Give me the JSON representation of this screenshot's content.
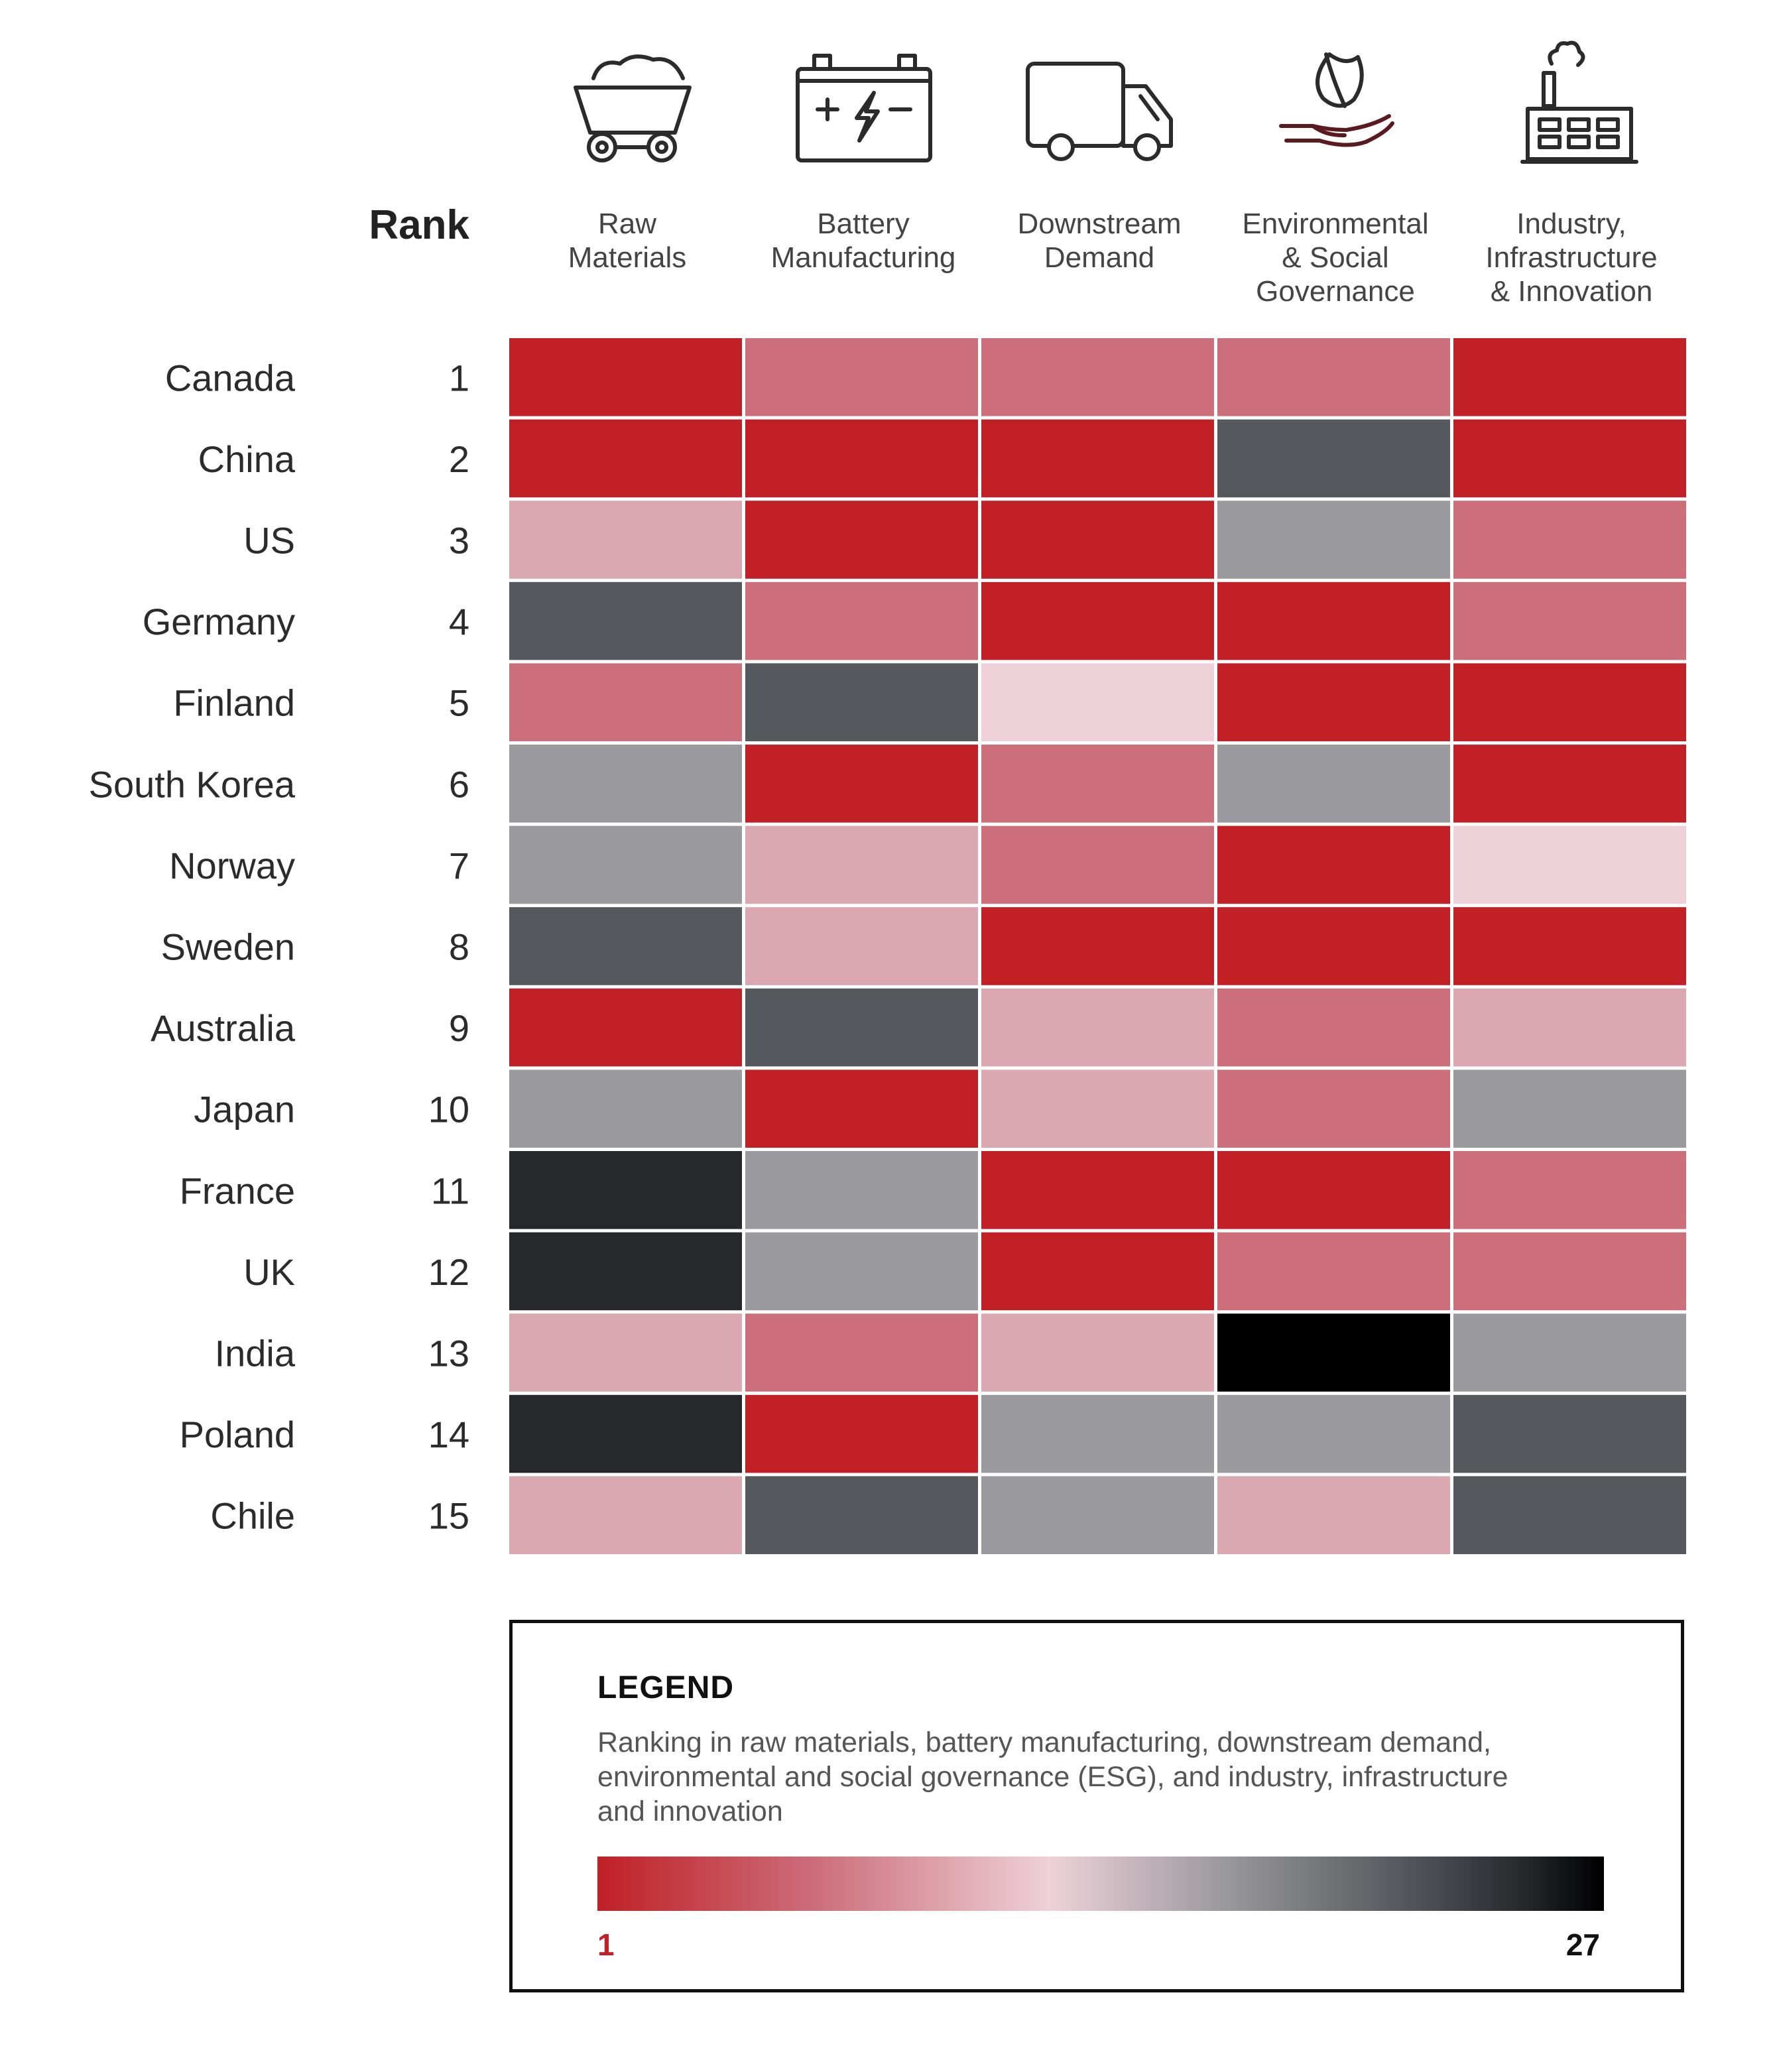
{
  "chart_data": {
    "type": "heatmap",
    "rank_header": "Rank",
    "columns": [
      {
        "label_lines": [
          "Raw",
          "Materials"
        ],
        "icon": "mining-cart-icon"
      },
      {
        "label_lines": [
          "Battery",
          "Manufacturing"
        ],
        "icon": "battery-icon"
      },
      {
        "label_lines": [
          "Downstream",
          "Demand"
        ],
        "icon": "truck-icon"
      },
      {
        "label_lines": [
          "Environmental",
          "& Social",
          "Governance"
        ],
        "icon": "leaf-in-hand-icon"
      },
      {
        "label_lines": [
          "Industry,",
          "Infrastructure",
          "& Innovation"
        ],
        "icon": "factory-icon"
      }
    ],
    "rows": [
      {
        "country": "Canada",
        "rank": "1",
        "levels": [
          0,
          2,
          2,
          2,
          0
        ]
      },
      {
        "country": "China",
        "rank": "2",
        "levels": [
          0,
          0,
          0,
          6,
          0
        ]
      },
      {
        "country": "US",
        "rank": "3",
        "levels": [
          3,
          0,
          0,
          5,
          2
        ]
      },
      {
        "country": "Germany",
        "rank": "4",
        "levels": [
          6,
          2,
          0,
          0,
          2
        ]
      },
      {
        "country": "Finland",
        "rank": "5",
        "levels": [
          2,
          6,
          4,
          0,
          0
        ]
      },
      {
        "country": "South Korea",
        "rank": "6",
        "levels": [
          5,
          0,
          2,
          5,
          0
        ]
      },
      {
        "country": "Norway",
        "rank": "7",
        "levels": [
          5,
          3,
          2,
          0,
          4
        ]
      },
      {
        "country": "Sweden",
        "rank": "8",
        "levels": [
          6,
          3,
          0,
          0,
          0
        ]
      },
      {
        "country": "Australia",
        "rank": "9",
        "levels": [
          0,
          6,
          3,
          2,
          3
        ]
      },
      {
        "country": "Japan",
        "rank": "10",
        "levels": [
          5,
          0,
          3,
          2,
          5
        ]
      },
      {
        "country": "France",
        "rank": "11",
        "levels": [
          7,
          5,
          0,
          0,
          2
        ]
      },
      {
        "country": "UK",
        "rank": "12",
        "levels": [
          7,
          5,
          0,
          2,
          2
        ]
      },
      {
        "country": "India",
        "rank": "13",
        "levels": [
          3,
          2,
          3,
          8,
          5
        ]
      },
      {
        "country": "Poland",
        "rank": "14",
        "levels": [
          7,
          0,
          5,
          5,
          6
        ]
      },
      {
        "country": "Chile",
        "rank": "15",
        "levels": [
          3,
          6,
          5,
          3,
          6
        ]
      }
    ],
    "palette": [
      "#c02026",
      "#c94b55",
      "#cc6f7b",
      "#dba7b0",
      "#eed1d9",
      "#9b9a9e",
      "#55585c",
      "#26282c",
      "#000000"
    ],
    "scale": {
      "min": "1",
      "max": "27"
    }
  },
  "legend": {
    "title": "LEGEND",
    "description": "Ranking in raw materials, battery manufacturing, downstream demand, environmental and social governance (ESG), and industry, infrastructure and innovation"
  }
}
